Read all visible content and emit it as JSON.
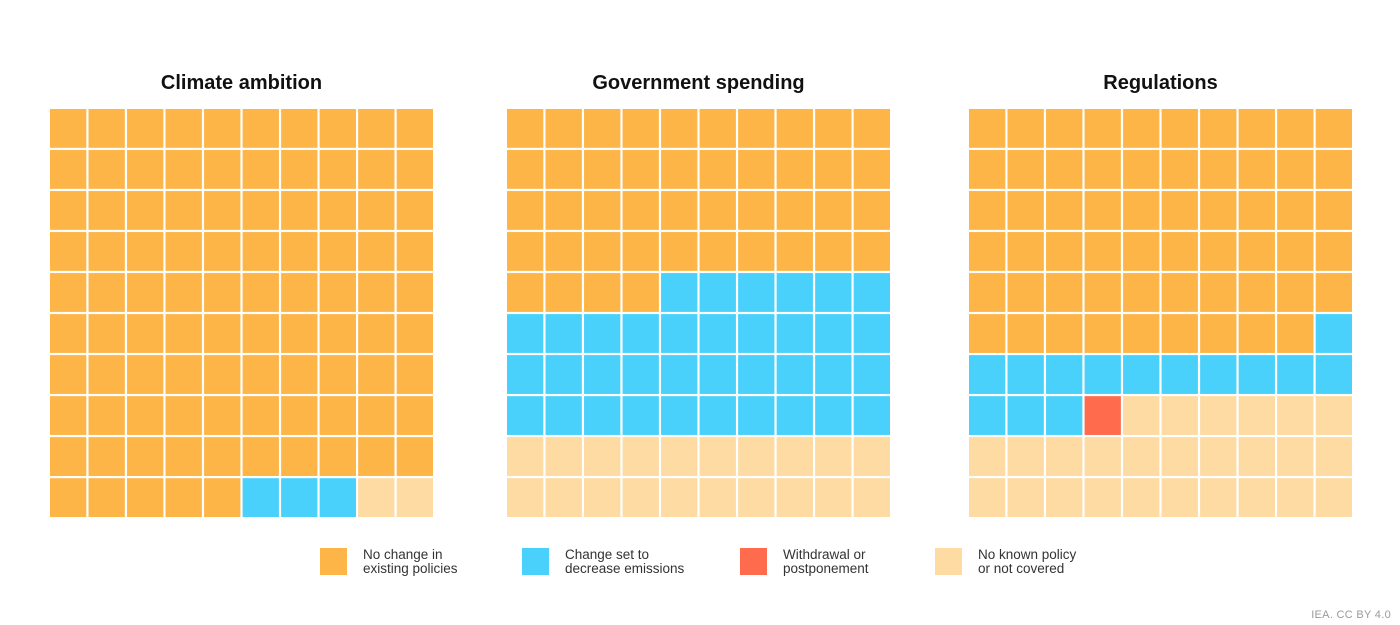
{
  "chart_data": {
    "type": "waffle",
    "grid": {
      "rows": 10,
      "cols": 10,
      "fill_order": "row-major-from-top"
    },
    "legend": [
      {
        "key": "no_change",
        "lines": [
          "No change in",
          "existing policies"
        ],
        "color": "#FDB547"
      },
      {
        "key": "decrease",
        "lines": [
          "Change set to",
          "decrease emissions"
        ],
        "color": "#49D1FB"
      },
      {
        "key": "withdrawal",
        "lines": [
          "Withdrawal or",
          "postponement"
        ],
        "color": "#FE6C4D"
      },
      {
        "key": "no_known",
        "lines": [
          "No known policy",
          "or not covered"
        ],
        "color": "#FDDBA2"
      }
    ],
    "panels": [
      {
        "title": "Climate ambition",
        "counts": {
          "no_change": 95,
          "decrease": 3,
          "withdrawal": 0,
          "no_known": 2
        }
      },
      {
        "title": "Government spending",
        "counts": {
          "no_change": 44,
          "decrease": 36,
          "withdrawal": 0,
          "no_known": 20
        }
      },
      {
        "title": "Regulations",
        "counts": {
          "no_change": 59,
          "decrease": 14,
          "withdrawal": 1,
          "no_known": 26
        }
      }
    ],
    "units": "percent of 100 squares"
  },
  "credit": "IEA. CC BY 4.0"
}
